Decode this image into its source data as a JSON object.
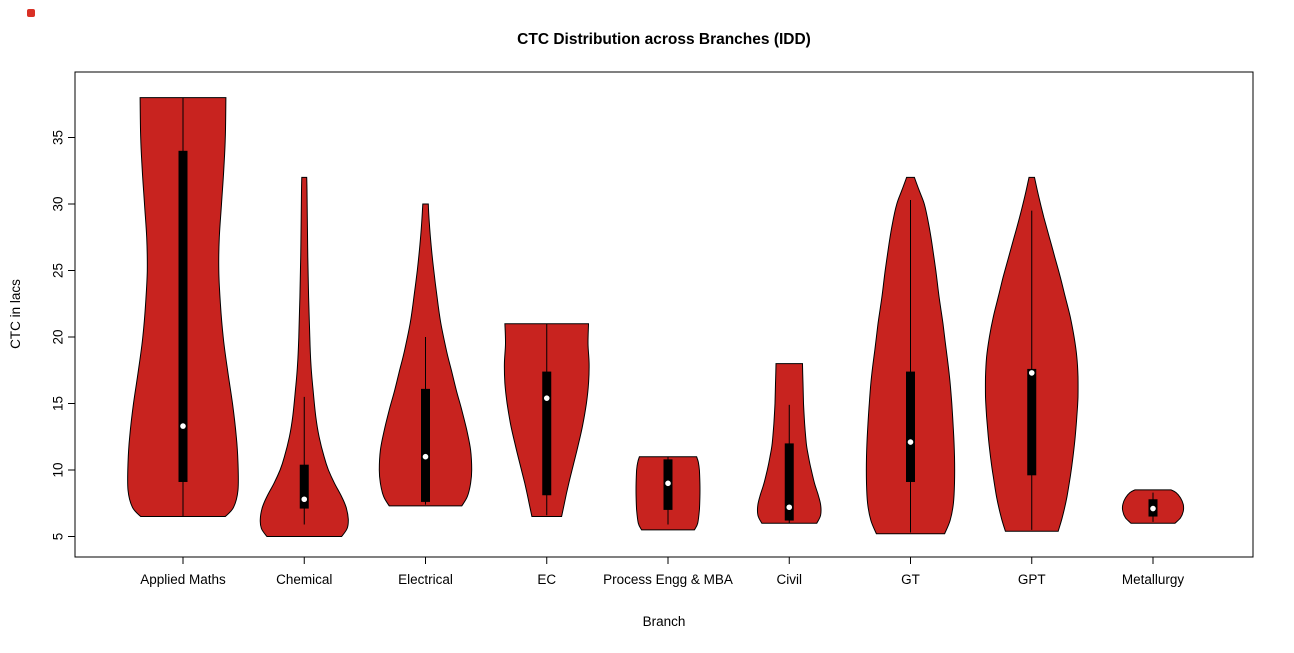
{
  "figure": {
    "background": "#FFFFFF",
    "stray_mark_color": "#D93025"
  },
  "chart_data": {
    "type": "violin",
    "title": "CTC Distribution across Branches (IDD)",
    "xlabel": "Branch",
    "ylabel": "CTC in lacs",
    "yticks": [
      5,
      10,
      15,
      20,
      25,
      30,
      35
    ],
    "ylim": [
      3.5,
      39.9
    ],
    "grid": false,
    "legend": "none",
    "fill_color": "#C8231F",
    "stroke_color": "#000000",
    "box_color": "#000000",
    "median_dot_color": "#FFFFFF",
    "categories": [
      "Applied Maths",
      "Chemical",
      "Electrical",
      "EC",
      "Process Engg & MBA",
      "Civil",
      "GT",
      "GPT",
      "Metallurgy"
    ],
    "violins": [
      {
        "branch": "Applied Maths",
        "min": 6.5,
        "max": 38,
        "q1": 9.1,
        "median": 13.3,
        "q3": 34.0,
        "whisker_low": 6.5,
        "whisker_high": 38,
        "shape": [
          [
            6.5,
            0.77
          ],
          [
            7.2,
            0.92
          ],
          [
            8.5,
            1.0
          ],
          [
            10.5,
            1.0
          ],
          [
            12.5,
            0.97
          ],
          [
            15,
            0.9
          ],
          [
            17.5,
            0.81
          ],
          [
            20,
            0.73
          ],
          [
            22.5,
            0.68
          ],
          [
            25,
            0.65
          ],
          [
            27.5,
            0.66
          ],
          [
            30,
            0.7
          ],
          [
            32.5,
            0.74
          ],
          [
            35,
            0.77
          ],
          [
            38,
            0.78
          ]
        ]
      },
      {
        "branch": "Chemical",
        "min": 5,
        "max": 32,
        "q1": 7.1,
        "median": 7.8,
        "q3": 10.4,
        "whisker_low": 5.9,
        "whisker_high": 15.5,
        "shape": [
          [
            5,
            0.68
          ],
          [
            5.6,
            0.78
          ],
          [
            6.3,
            0.8
          ],
          [
            7.2,
            0.76
          ],
          [
            8,
            0.68
          ],
          [
            9,
            0.55
          ],
          [
            10,
            0.44
          ],
          [
            11,
            0.36
          ],
          [
            12.5,
            0.27
          ],
          [
            14,
            0.21
          ],
          [
            16,
            0.16
          ],
          [
            18,
            0.12
          ],
          [
            20,
            0.1
          ],
          [
            23,
            0.08
          ],
          [
            26,
            0.065
          ],
          [
            29,
            0.055
          ],
          [
            31,
            0.05
          ],
          [
            32,
            0.045
          ]
        ]
      },
      {
        "branch": "Electrical",
        "min": 7.3,
        "max": 30,
        "q1": 7.6,
        "median": 11.0,
        "q3": 16.1,
        "whisker_low": 7.4,
        "whisker_high": 20.0,
        "shape": [
          [
            7.3,
            0.66
          ],
          [
            8,
            0.76
          ],
          [
            9,
            0.82
          ],
          [
            10,
            0.84
          ],
          [
            11.5,
            0.82
          ],
          [
            13,
            0.75
          ],
          [
            14.5,
            0.66
          ],
          [
            16,
            0.56
          ],
          [
            17.5,
            0.47
          ],
          [
            19,
            0.38
          ],
          [
            21,
            0.28
          ],
          [
            23,
            0.21
          ],
          [
            25,
            0.15
          ],
          [
            27,
            0.1
          ],
          [
            28.5,
            0.07
          ],
          [
            30,
            0.05
          ]
        ]
      },
      {
        "branch": "EC",
        "min": 6.5,
        "max": 21,
        "q1": 8.1,
        "median": 15.4,
        "q3": 17.4,
        "whisker_low": 6.6,
        "whisker_high": 21,
        "shape": [
          [
            6.5,
            0.27
          ],
          [
            7.5,
            0.32
          ],
          [
            9,
            0.4
          ],
          [
            10.5,
            0.49
          ],
          [
            12,
            0.58
          ],
          [
            13.5,
            0.66
          ],
          [
            15,
            0.72
          ],
          [
            16.5,
            0.76
          ],
          [
            18,
            0.77
          ],
          [
            19.5,
            0.75
          ],
          [
            21,
            0.76
          ]
        ]
      },
      {
        "branch": "Process Engg & MBA",
        "min": 5.5,
        "max": 11,
        "q1": 7.0,
        "median": 9.0,
        "q3": 10.8,
        "whisker_low": 5.9,
        "whisker_high": 11,
        "shape": [
          [
            5.5,
            0.48
          ],
          [
            6,
            0.54
          ],
          [
            7,
            0.57
          ],
          [
            8,
            0.58
          ],
          [
            9,
            0.58
          ],
          [
            10,
            0.57
          ],
          [
            10.6,
            0.55
          ],
          [
            11,
            0.52
          ]
        ]
      },
      {
        "branch": "Civil",
        "min": 6,
        "max": 18,
        "q1": 6.2,
        "median": 7.2,
        "q3": 12.0,
        "whisker_low": 6.0,
        "whisker_high": 14.9,
        "shape": [
          [
            6,
            0.5
          ],
          [
            6.6,
            0.57
          ],
          [
            7.4,
            0.57
          ],
          [
            8.2,
            0.52
          ],
          [
            9,
            0.46
          ],
          [
            10,
            0.4
          ],
          [
            11,
            0.35
          ],
          [
            12,
            0.31
          ],
          [
            13.5,
            0.28
          ],
          [
            15,
            0.26
          ],
          [
            16.5,
            0.25
          ],
          [
            18,
            0.24
          ]
        ]
      },
      {
        "branch": "GT",
        "min": 5.2,
        "max": 32,
        "q1": 9.1,
        "median": 12.1,
        "q3": 17.4,
        "whisker_low": 5.3,
        "whisker_high": 30.3,
        "shape": [
          [
            5.2,
            0.62
          ],
          [
            6.2,
            0.72
          ],
          [
            7.5,
            0.78
          ],
          [
            9,
            0.8
          ],
          [
            11,
            0.8
          ],
          [
            13,
            0.78
          ],
          [
            15,
            0.75
          ],
          [
            17,
            0.71
          ],
          [
            19,
            0.65
          ],
          [
            21,
            0.59
          ],
          [
            23,
            0.52
          ],
          [
            25,
            0.46
          ],
          [
            27,
            0.39
          ],
          [
            28.5,
            0.33
          ],
          [
            30,
            0.25
          ],
          [
            31,
            0.16
          ],
          [
            32,
            0.07
          ]
        ]
      },
      {
        "branch": "GPT",
        "min": 5.4,
        "max": 32,
        "q1": 9.6,
        "median": 17.3,
        "q3": 17.6,
        "whisker_low": 5.5,
        "whisker_high": 29.5,
        "shape": [
          [
            5.4,
            0.48
          ],
          [
            6.5,
            0.56
          ],
          [
            8,
            0.64
          ],
          [
            9.5,
            0.7
          ],
          [
            11,
            0.75
          ],
          [
            12.5,
            0.79
          ],
          [
            14,
            0.82
          ],
          [
            15.5,
            0.84
          ],
          [
            17,
            0.84
          ],
          [
            18.5,
            0.82
          ],
          [
            20,
            0.77
          ],
          [
            21.5,
            0.7
          ],
          [
            23,
            0.61
          ],
          [
            24.5,
            0.52
          ],
          [
            26,
            0.42
          ],
          [
            27.5,
            0.32
          ],
          [
            29,
            0.22
          ],
          [
            30.5,
            0.13
          ],
          [
            32,
            0.05
          ]
        ]
      },
      {
        "branch": "Metallurgy",
        "min": 6,
        "max": 8.5,
        "q1": 6.5,
        "median": 7.1,
        "q3": 7.8,
        "whisker_low": 6.1,
        "whisker_high": 8.3,
        "shape": [
          [
            6,
            0.4
          ],
          [
            6.4,
            0.5
          ],
          [
            6.9,
            0.55
          ],
          [
            7.4,
            0.55
          ],
          [
            7.9,
            0.5
          ],
          [
            8.3,
            0.42
          ],
          [
            8.5,
            0.33
          ]
        ]
      }
    ]
  }
}
